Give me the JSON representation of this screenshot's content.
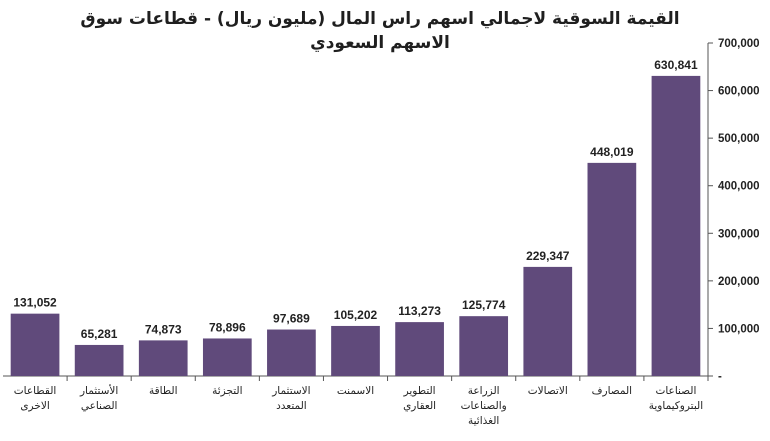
{
  "chart_data": {
    "type": "bar",
    "title_lines": [
      "القيمة السوقية لاجمالي اسهم راس المال (مليون ريال) - قطاعات سوق",
      "الاسهم السعودي"
    ],
    "categories": [
      [
        "الصناعات",
        "البتروكيماوية"
      ],
      [
        "المصارف"
      ],
      [
        "الاتصالات"
      ],
      [
        "الزراعة",
        "والصناعات",
        "الغذائية"
      ],
      [
        "التطوير",
        "العقاري"
      ],
      [
        "الاسمنت"
      ],
      [
        "الاستثمار",
        "المتعدد"
      ],
      [
        "التجزئة"
      ],
      [
        "الطاقة"
      ],
      [
        "الأستثمار",
        "الصناعي"
      ],
      [
        "القطاعات",
        "الاخرى"
      ]
    ],
    "values": [
      630841,
      448019,
      229347,
      125774,
      113273,
      105202,
      97689,
      78896,
      74873,
      65281,
      131052
    ],
    "value_labels": [
      "630,841",
      "448,019",
      "229,347",
      "125,774",
      "113,273",
      "105,202",
      "97,689",
      "78,896",
      "74,873",
      "65,281",
      "131,052"
    ],
    "ylim": [
      0,
      700000
    ],
    "yticks": [
      0,
      100000,
      200000,
      300000,
      400000,
      500000,
      600000,
      700000
    ],
    "ytick_labels": [
      "-",
      "100,000",
      "200,000",
      "300,000",
      "400,000",
      "500,000",
      "600,000",
      "700,000"
    ],
    "y_axis_side": "right",
    "category_order": "right-to-left",
    "grid": false,
    "legend": "none",
    "bar_color": "#604a7b"
  }
}
